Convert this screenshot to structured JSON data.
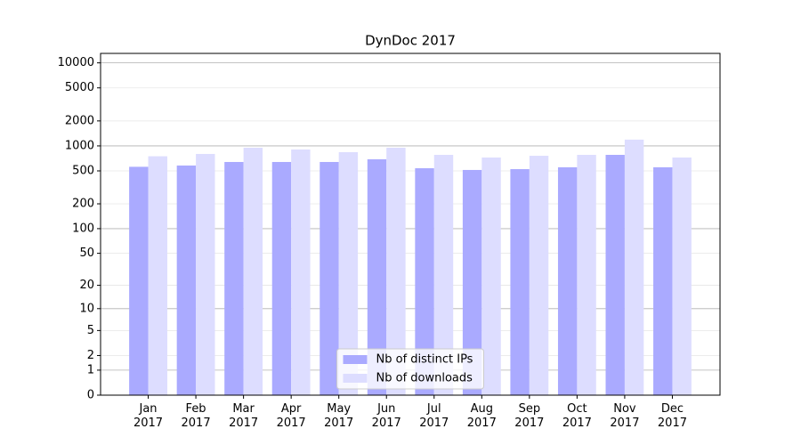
{
  "chart_data": {
    "type": "bar",
    "title": "DynDoc 2017",
    "scale": "log1p",
    "categories": [
      "Jan 2017",
      "Feb 2017",
      "Mar 2017",
      "Apr 2017",
      "May 2017",
      "Jun 2017",
      "Jul 2017",
      "Aug 2017",
      "Sep 2017",
      "Oct 2017",
      "Nov 2017",
      "Dec 2017"
    ],
    "series": [
      {
        "name": "Nb of distinct IPs",
        "color": "#aaaaff",
        "values": [
          560,
          580,
          640,
          640,
          640,
          690,
          538,
          513,
          525,
          552,
          780,
          552
        ]
      },
      {
        "name": "Nb of downloads",
        "color": "#ddddff",
        "values": [
          750,
          800,
          950,
          905,
          840,
          950,
          780,
          725,
          760,
          780,
          1190,
          725
        ]
      }
    ],
    "ylim": [
      0,
      13000
    ],
    "yticks": [
      0,
      1,
      2,
      5,
      10,
      20,
      50,
      100,
      200,
      500,
      1000,
      2000,
      5000,
      10000
    ],
    "grid": true,
    "legend": "lower center"
  }
}
